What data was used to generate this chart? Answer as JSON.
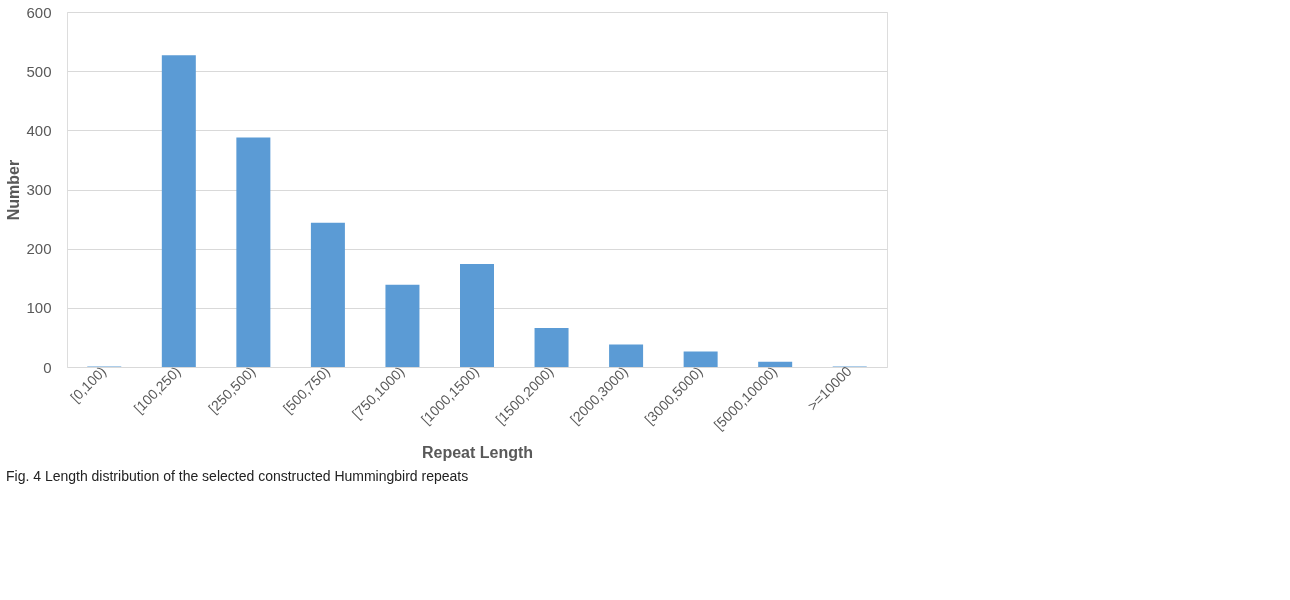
{
  "chart_data": {
    "type": "bar",
    "xlabel": "Repeat Length",
    "ylabel": "Number",
    "categories": [
      "[0,100)",
      "[100,250)",
      "[250,500)",
      "[500,750)",
      "[750,1000)",
      "[1000,1500)",
      "[1500,2000)",
      "[2000,3000)",
      "[3000,5000)",
      "[5000,10000)",
      ">=10000"
    ],
    "values": [
      1,
      527,
      388,
      244,
      139,
      174,
      66,
      38,
      26,
      9,
      1
    ],
    "color": "#5b9bd5",
    "ylim": [
      0,
      600
    ],
    "yticks": [
      0,
      100,
      200,
      300,
      400,
      500,
      600
    ],
    "grid": "y",
    "annotations": [
      "Fig. 4 Length distribution of the selected constructed Hummingbird repeats"
    ]
  }
}
